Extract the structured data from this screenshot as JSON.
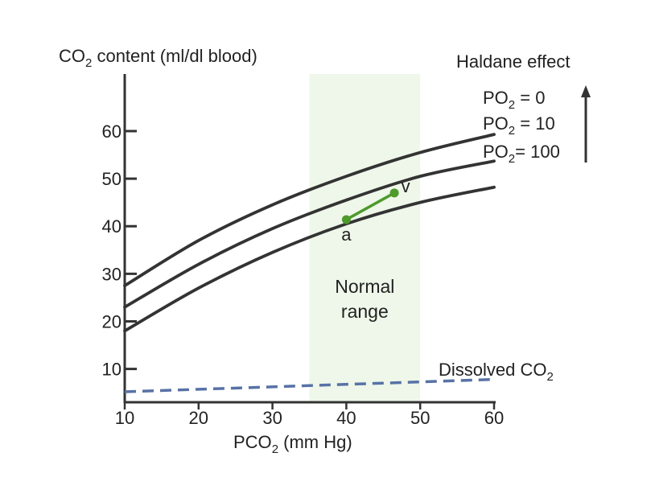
{
  "chart_data": {
    "type": "line",
    "title": "",
    "ylabel": {
      "pre": "CO",
      "sub": "2",
      "post": " content (ml/dl blood)"
    },
    "xlabel": {
      "pre": "PCO",
      "sub": "2",
      "post": " (mm Hg)"
    },
    "xlim": [
      10,
      60
    ],
    "ylim": [
      3,
      72
    ],
    "x_ticks": [
      10,
      20,
      30,
      40,
      50,
      60
    ],
    "y_ticks": [
      10,
      20,
      30,
      40,
      50,
      60
    ],
    "normal_range": {
      "x": [
        35,
        50
      ],
      "label_line1": "Normal",
      "label_line2": "range"
    },
    "series": [
      {
        "name": "PO2 = 0",
        "label_pre": "PO",
        "label_sub": "2",
        "label_post": " = 0",
        "x": [
          10,
          20,
          30,
          40,
          50,
          60
        ],
        "y": [
          27.5,
          37,
          44.5,
          50.5,
          55.5,
          59.3
        ]
      },
      {
        "name": "PO2 = 10",
        "label_pre": "PO",
        "label_sub": "2",
        "label_post": " = 10",
        "x": [
          10,
          20,
          30,
          40,
          50,
          60
        ],
        "y": [
          23,
          32,
          39.5,
          45.5,
          50.5,
          53.7
        ]
      },
      {
        "name": "PO2 = 100",
        "label_pre": "PO",
        "label_sub": "2",
        "label_post": "= 100",
        "x": [
          10,
          20,
          30,
          40,
          50,
          60
        ],
        "y": [
          18,
          27,
          34.5,
          40.5,
          45,
          48.2
        ]
      }
    ],
    "dissolved": {
      "label_pre": "Dissolved CO",
      "label_sub": "2",
      "x": [
        10,
        60
      ],
      "y": [
        5.2,
        7.8
      ]
    },
    "av_segment": {
      "a": {
        "x": 40,
        "y": 41.4,
        "label": "a"
      },
      "v": {
        "x": 46.5,
        "y": 47,
        "label": "v"
      }
    },
    "haldane": {
      "label": "Haldane effect"
    },
    "colors": {
      "curve": "#333333",
      "segment": "#4e9a2d",
      "dissolved": "#5872a6",
      "band": "#eef7e9",
      "range_text": "#a0a0a0"
    }
  }
}
